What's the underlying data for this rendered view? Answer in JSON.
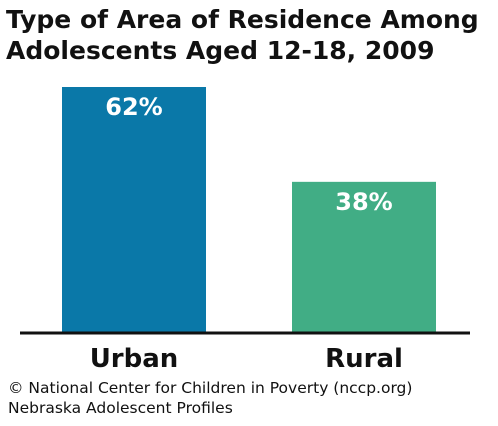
{
  "chart_data": {
    "type": "bar",
    "title_lines": [
      "Type of Area of Residence Among",
      "Adolescents Aged 12-18, 2009"
    ],
    "categories": [
      "Urban",
      "Rural"
    ],
    "values": [
      62,
      38
    ],
    "value_labels": [
      "62%",
      "38%"
    ],
    "colors": [
      "#0a78a8",
      "#41ad85"
    ],
    "ylim": [
      0,
      62
    ],
    "grid": false,
    "legend": "none"
  },
  "source": {
    "line1": "© National Center for Children in Poverty (nccp.org)",
    "line2": "Nebraska Adolescent Profiles"
  }
}
